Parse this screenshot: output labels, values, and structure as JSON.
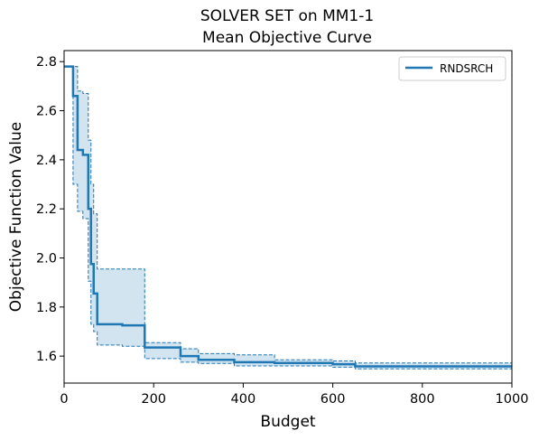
{
  "chart_data": {
    "type": "line",
    "title": [
      "SOLVER SET on MM1-1",
      "Mean Objective Curve"
    ],
    "xlabel": "Budget",
    "ylabel": "Objective Function Value",
    "xlim": [
      0,
      1000
    ],
    "ylim": [
      1.49,
      2.845
    ],
    "xticks": [
      0,
      200,
      400,
      600,
      800,
      1000
    ],
    "yticks": [
      1.6,
      1.8,
      2.0,
      2.2,
      2.4,
      2.6,
      2.8
    ],
    "ytick_labels": [
      "1.6",
      "1.8",
      "2.0",
      "2.2",
      "2.4",
      "2.6",
      "2.8"
    ],
    "grid": false,
    "legend": {
      "position": "top-right",
      "entries": [
        "RNDSRCH"
      ]
    },
    "colors": {
      "line": "#1f77b4",
      "band": "#1f77b4"
    },
    "series": [
      {
        "name": "RNDSRCH",
        "step": "post",
        "x": [
          0,
          20,
          30,
          42,
          54,
          60,
          66,
          74,
          130,
          180,
          260,
          300,
          380,
          470,
          600,
          650,
          1000
        ],
        "y": [
          2.78,
          2.66,
          2.44,
          2.42,
          2.2,
          1.975,
          1.855,
          1.73,
          1.725,
          1.635,
          1.6,
          1.585,
          1.575,
          1.572,
          1.567,
          1.558,
          1.558
        ],
        "lower": [
          2.78,
          2.3,
          2.19,
          2.16,
          1.905,
          1.73,
          1.7,
          1.645,
          1.64,
          1.59,
          1.575,
          1.57,
          1.56,
          1.56,
          1.555,
          1.548,
          1.548
        ],
        "upper": [
          2.78,
          2.78,
          2.68,
          2.67,
          2.48,
          2.3,
          2.18,
          1.955,
          1.955,
          1.655,
          1.63,
          1.61,
          1.605,
          1.585,
          1.58,
          1.572,
          1.572
        ]
      }
    ]
  }
}
